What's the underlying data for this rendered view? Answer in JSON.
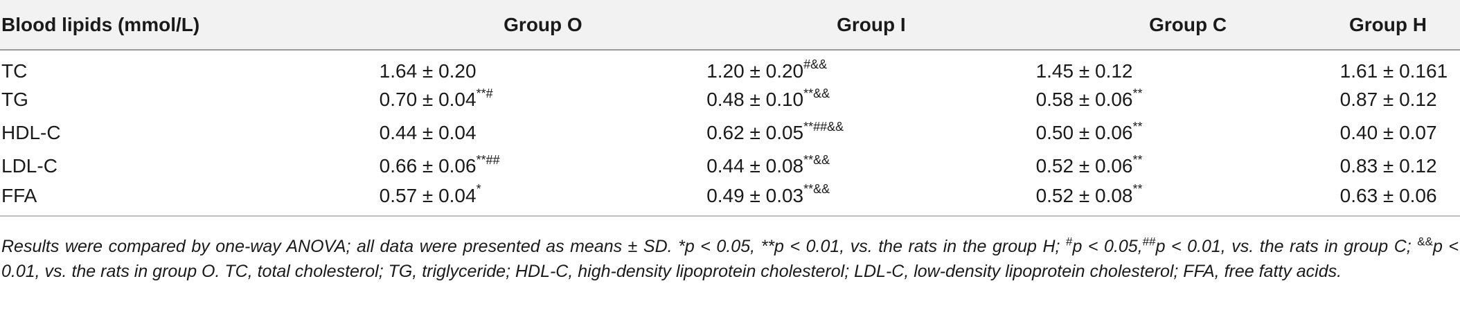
{
  "table": {
    "headers": [
      "Blood lipids (mmol/L)",
      "Group O",
      "Group I",
      "Group C",
      "Group H"
    ],
    "rows": [
      {
        "label": "TC",
        "cells": [
          {
            "val": "1.64 ± 0.20",
            "sup": ""
          },
          {
            "val": "1.20 ± 0.20",
            "sup": "#&&"
          },
          {
            "val": "1.45 ± 0.12",
            "sup": ""
          },
          {
            "val": "1.61 ± 0.161",
            "sup": ""
          }
        ]
      },
      {
        "label": "TG",
        "cells": [
          {
            "val": "0.70 ± 0.04",
            "sup": "**#"
          },
          {
            "val": "0.48 ± 0.10",
            "sup": "**&&"
          },
          {
            "val": "0.58 ± 0.06",
            "sup": "**"
          },
          {
            "val": "0.87 ± 0.12",
            "sup": ""
          }
        ]
      },
      {
        "label": "HDL-C",
        "cells": [
          {
            "val": "0.44 ± 0.04",
            "sup": ""
          },
          {
            "val": "0.62 ± 0.05",
            "sup": "**##&&"
          },
          {
            "val": "0.50 ± 0.06",
            "sup": "**"
          },
          {
            "val": "0.40 ± 0.07",
            "sup": ""
          }
        ]
      },
      {
        "label": "LDL-C",
        "cells": [
          {
            "val": "0.66 ± 0.06",
            "sup": "**##"
          },
          {
            "val": "0.44 ± 0.08",
            "sup": "**&&"
          },
          {
            "val": "0.52 ± 0.06",
            "sup": "**"
          },
          {
            "val": "0.83 ± 0.12",
            "sup": ""
          }
        ]
      },
      {
        "label": "FFA",
        "cells": [
          {
            "val": "0.57 ± 0.04",
            "sup": "*"
          },
          {
            "val": "0.49 ± 0.03",
            "sup": "**&&"
          },
          {
            "val": "0.52 ± 0.08",
            "sup": "**"
          },
          {
            "val": "0.63 ± 0.06",
            "sup": ""
          }
        ]
      }
    ]
  },
  "footnote": {
    "part1": "Results were compared by one-way ANOVA; all data were presented as means ± SD. *p < 0.05, **p < 0.01, vs. the rats in the group H; ",
    "sym1": "#",
    "part2": "p < 0.05,",
    "sym2": "##",
    "part3": "p < 0.01, vs. the rats in group C; ",
    "sym3": "&&",
    "part4": "p < 0.01, vs. the rats in group O. TC, total cholesterol; TG, triglyceride; HDL-C, high-density lipoprotein cholesterol; LDL-C, low-density lipoprotein cholesterol; FFA, free fatty acids."
  }
}
